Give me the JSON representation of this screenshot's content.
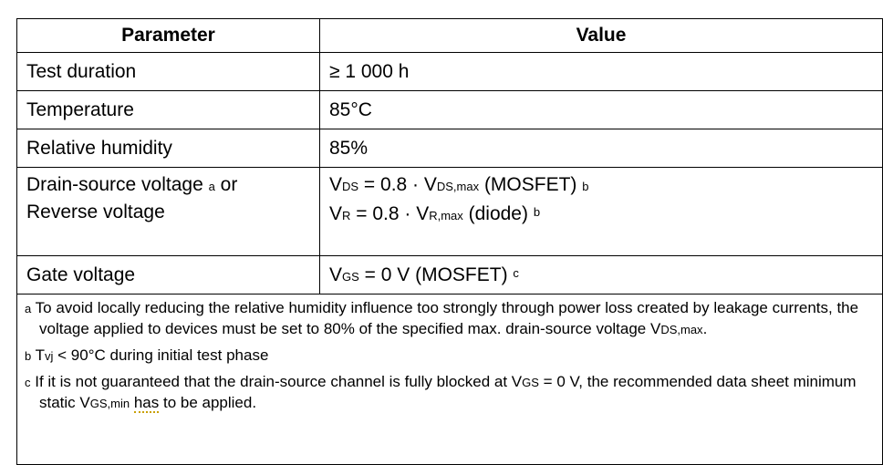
{
  "header": {
    "parameter": "Parameter",
    "value": "Value"
  },
  "rows": [
    {
      "parameter": "Test duration",
      "value": "≥ 1 000 h"
    },
    {
      "parameter": "Temperature",
      "value": "85°C"
    },
    {
      "parameter": "Relative humidity",
      "value": "85%"
    }
  ],
  "voltage_row": {
    "param_line1": "Drain-source voltage",
    "param_note": "a",
    "param_or": " or",
    "param_line2": "Reverse voltage",
    "v1_a": "V",
    "v1_sub": "DS",
    "v1_b": " = 0.8 · V",
    "v1_sub2": "DS,max",
    "v1_c": " (MOSFET) ",
    "v1_note": "b",
    "v2_a": "V",
    "v2_sub": "R",
    "v2_b": " = 0.8 · V",
    "v2_sub2": "R,max",
    "v2_c": " (diode) ",
    "v2_note": "b"
  },
  "gate_row": {
    "parameter": "Gate voltage",
    "v_a": "V",
    "v_sub": "GS",
    "v_b": " = 0 V (MOSFET) ",
    "v_note": "c"
  },
  "footnotes": {
    "a_mark": "a",
    "a_text": " To avoid locally reducing the relative humidity influence too strongly through power loss created by leakage currents, the voltage applied to devices must be set to 80% of the specified max. drain-source voltage V",
    "a_sub": "DS,max",
    "a_end": ".",
    "b_mark": "b",
    "b_text1": " T",
    "b_sub": "vj",
    "b_text2": " < 90°C during initial test phase",
    "c_mark": "c",
    "c_text1": " If it is not guaranteed that the drain-source channel is fully blocked at V",
    "c_sub1": "GS",
    "c_text2": " = 0 V, the recommended data sheet minimum static V",
    "c_sub2": "GS,min",
    "c_text3": " ",
    "c_has": "has",
    "c_text4": " to be applied."
  }
}
